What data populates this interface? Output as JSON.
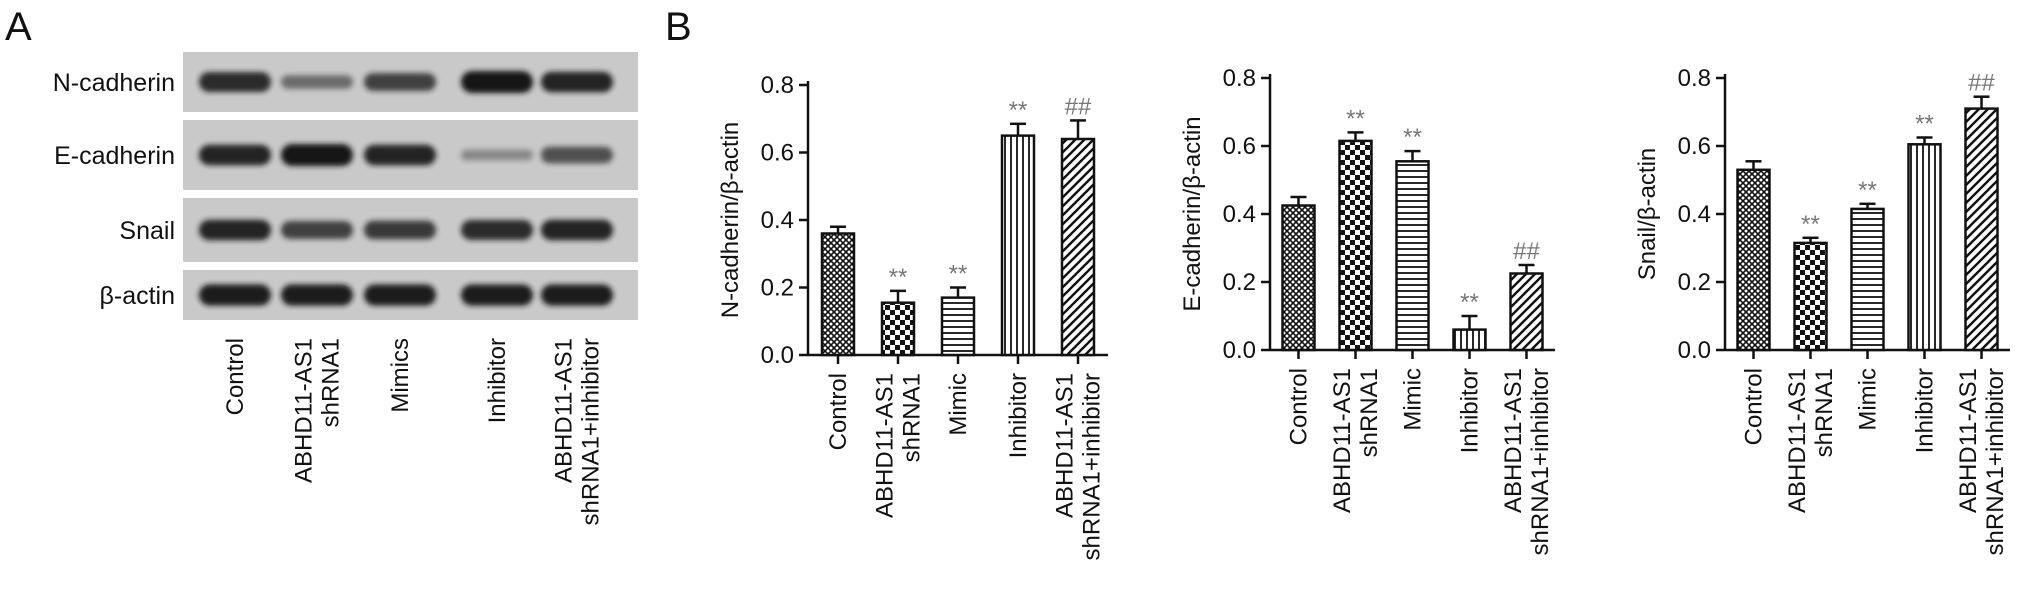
{
  "panel_a": {
    "letter": "A",
    "rows": [
      {
        "label": "N-cadherin",
        "bands": [
          0.85,
          0.4,
          0.7,
          1.0,
          0.9
        ]
      },
      {
        "label": "E-cadherin",
        "bands": [
          0.9,
          1.0,
          0.9,
          0.2,
          0.6
        ]
      },
      {
        "label": "Snail",
        "bands": [
          0.9,
          0.7,
          0.75,
          0.85,
          0.9
        ]
      },
      {
        "label": "β-actin",
        "bands": [
          0.95,
          0.95,
          0.95,
          0.95,
          0.95
        ]
      }
    ],
    "lanes": [
      "Control",
      "ABHD11-AS1\nshRNA1",
      "Mimics",
      "Inhibitor",
      "ABHD11-AS1\nshRNA1+inhibitor"
    ]
  },
  "panel_b": {
    "letter": "B"
  },
  "chart_data": [
    {
      "type": "bar",
      "ylabel": "N-cadherin/β-actin",
      "ylim": [
        0,
        0.8
      ],
      "yticks": [
        "0.0",
        "0.2",
        "0.4",
        "0.6",
        "0.8"
      ],
      "categories": [
        "Control",
        "ABHD11-AS1\nshRNA1",
        "Mimic",
        "Inhibitor",
        "ABHD11-AS1\nshRNA1+inhibitor"
      ],
      "values": [
        0.36,
        0.155,
        0.17,
        0.65,
        0.64
      ],
      "errors": [
        0.02,
        0.035,
        0.03,
        0.035,
        0.055
      ],
      "annotations": [
        "",
        "**",
        "**",
        "**",
        "##"
      ],
      "patterns": [
        "crosshatch",
        "checker",
        "hlines",
        "vlines",
        "diag"
      ]
    },
    {
      "type": "bar",
      "ylabel": "E-cadherin/β-actin",
      "ylim": [
        0,
        0.8
      ],
      "yticks": [
        "0.0",
        "0.2",
        "0.4",
        "0.6",
        "0.8"
      ],
      "categories": [
        "Control",
        "ABHD11-AS1\nshRNA1",
        "Mimic",
        "Inhibitor",
        "ABHD11-AS1\nshRNA1+inhibitor"
      ],
      "values": [
        0.425,
        0.615,
        0.555,
        0.06,
        0.225
      ],
      "errors": [
        0.025,
        0.025,
        0.03,
        0.04,
        0.025
      ],
      "annotations": [
        "",
        "**",
        "**",
        "**",
        "##"
      ],
      "patterns": [
        "crosshatch",
        "checker",
        "hlines",
        "vlines",
        "diag"
      ]
    },
    {
      "type": "bar",
      "ylabel": "Snail/β-actin",
      "ylim": [
        0,
        0.8
      ],
      "yticks": [
        "0.0",
        "0.2",
        "0.4",
        "0.6",
        "0.8"
      ],
      "categories": [
        "Control",
        "ABHD11-AS1\nshRNA1",
        "Mimic",
        "Inhibitor",
        "ABHD11-AS1\nshRNA1+inhibitor"
      ],
      "values": [
        0.53,
        0.315,
        0.415,
        0.605,
        0.71
      ],
      "errors": [
        0.025,
        0.015,
        0.015,
        0.02,
        0.035
      ],
      "annotations": [
        "",
        "**",
        "**",
        "**",
        "##"
      ],
      "patterns": [
        "crosshatch",
        "checker",
        "hlines",
        "vlines",
        "diag"
      ]
    }
  ]
}
